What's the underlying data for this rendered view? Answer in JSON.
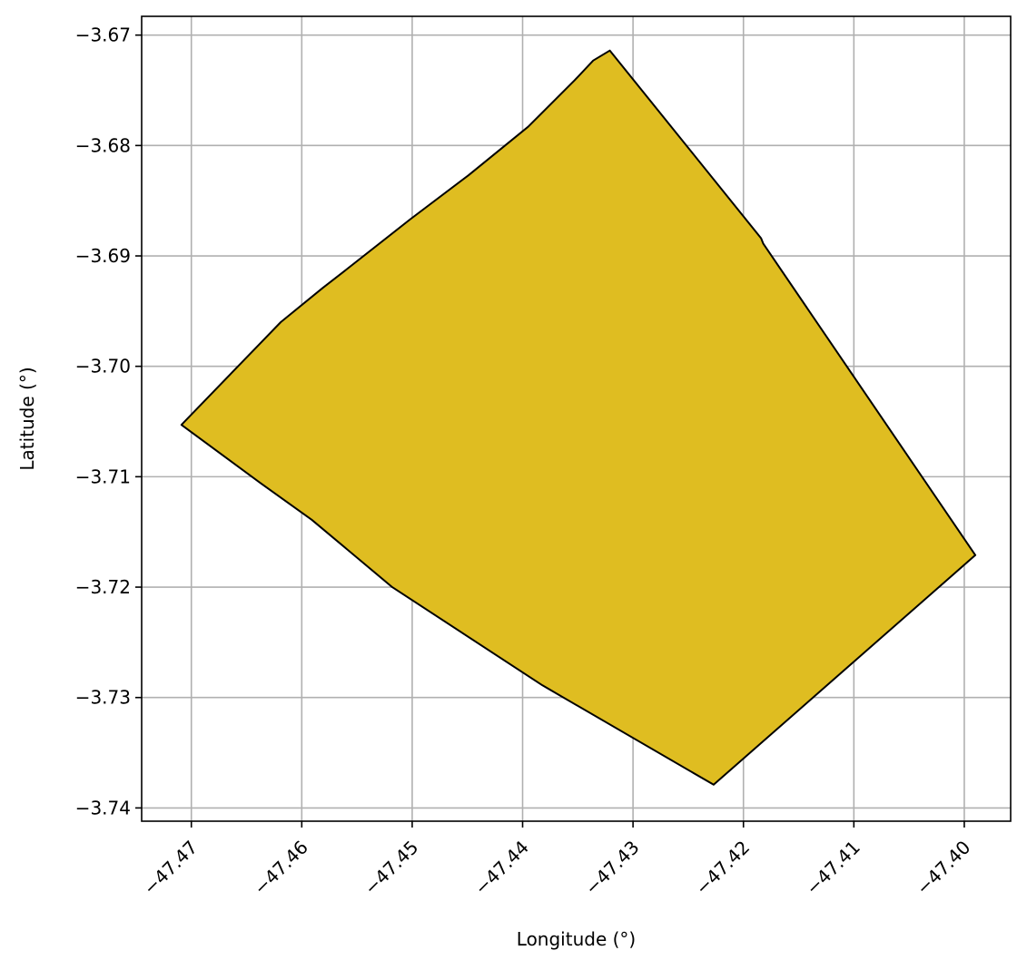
{
  "chart_data": {
    "type": "area",
    "xlabel": "Longitude (°)",
    "ylabel": "Latitude (°)",
    "xlim": [
      -47.4745,
      -47.3958
    ],
    "ylim": [
      -3.7412,
      -3.6683
    ],
    "grid": true,
    "x_ticks": [
      -47.47,
      -47.46,
      -47.45,
      -47.44,
      -47.43,
      -47.42,
      -47.41,
      -47.4
    ],
    "x_tick_labels": [
      "−47.47",
      "−47.46",
      "−47.45",
      "−47.44",
      "−47.43",
      "−47.42",
      "−47.41",
      "−47.40"
    ],
    "y_ticks": [
      -3.67,
      -3.68,
      -3.69,
      -3.7,
      -3.71,
      -3.72,
      -3.73,
      -3.74
    ],
    "y_tick_labels": [
      "−3.67",
      "−3.68",
      "−3.69",
      "−3.70",
      "−3.71",
      "−3.72",
      "−3.73",
      "−3.74"
    ],
    "polygon": {
      "fill": "#dfbd21",
      "edge": "#000000",
      "points": [
        [
          -47.4709,
          -3.7053
        ],
        [
          -47.4619,
          -3.696
        ],
        [
          -47.4581,
          -3.6929
        ],
        [
          -47.4563,
          -3.6915
        ],
        [
          -47.4502,
          -3.6867
        ],
        [
          -47.4449,
          -3.6827
        ],
        [
          -47.4395,
          -3.6783
        ],
        [
          -47.4353,
          -3.6741
        ],
        [
          -47.4336,
          -3.6723
        ],
        [
          -47.4321,
          -3.6714
        ],
        [
          -47.4184,
          -3.6884
        ],
        [
          -47.4182,
          -3.6889
        ],
        [
          -47.399,
          -3.7171
        ],
        [
          -47.4227,
          -3.7379
        ],
        [
          -47.4382,
          -3.7289
        ],
        [
          -47.4518,
          -3.72
        ],
        [
          -47.4591,
          -3.7139
        ],
        [
          -47.4637,
          -3.7106
        ],
        [
          -47.4709,
          -3.7053
        ]
      ]
    }
  }
}
